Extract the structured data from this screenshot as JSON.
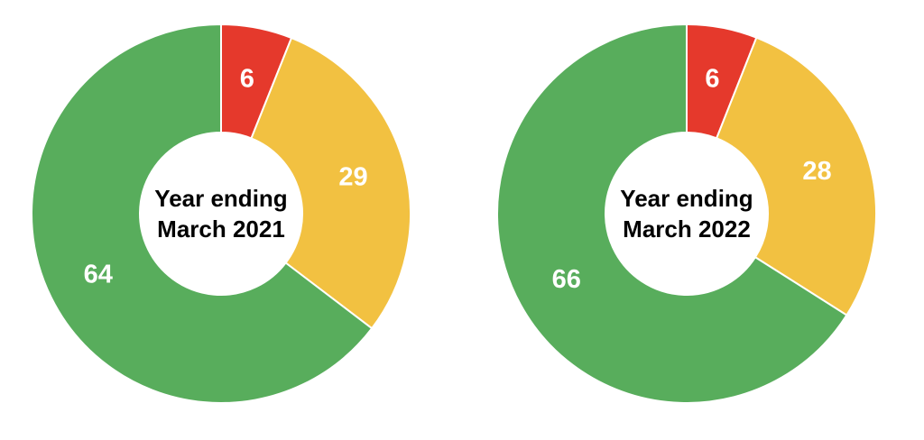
{
  "chart_data": [
    {
      "type": "donut",
      "title": "Year ending March 2021",
      "categories": [
        null,
        null,
        null
      ],
      "values": [
        6,
        29,
        64
      ],
      "colors": [
        "#e5392c",
        "#f2c141",
        "#58ad5c"
      ]
    },
    {
      "type": "donut",
      "title": "Year ending March 2022",
      "categories": [
        null,
        null,
        null
      ],
      "values": [
        6,
        28,
        66
      ],
      "colors": [
        "#e5392c",
        "#f2c141",
        "#58ad5c"
      ]
    }
  ]
}
